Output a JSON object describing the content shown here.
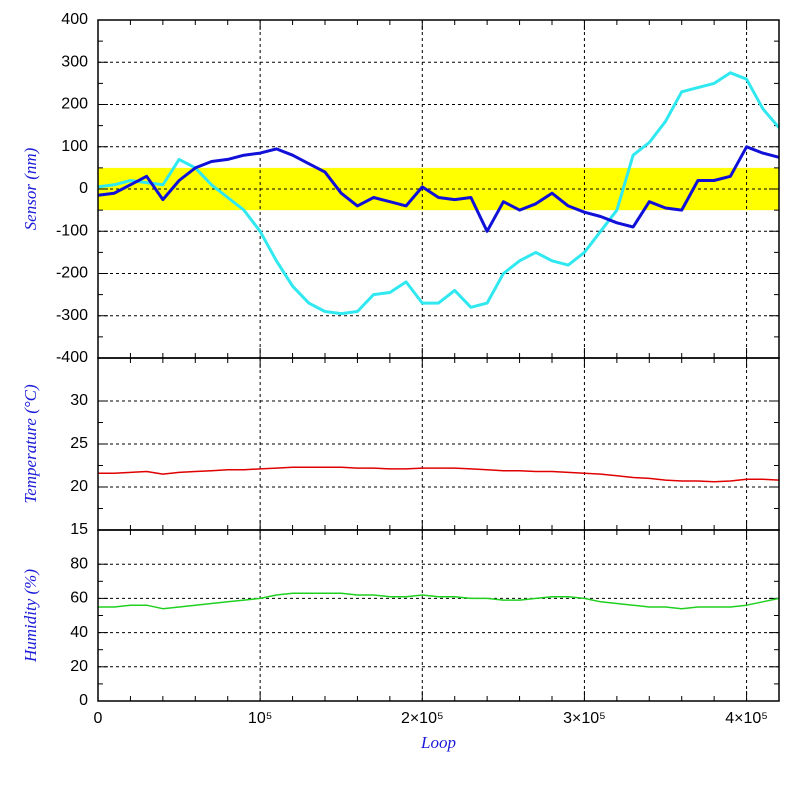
{
  "chart_data": [
    {
      "type": "line",
      "y_label": "Sensor (nm)",
      "xlim": [
        0,
        420000
      ],
      "xticks": [
        0,
        100000,
        200000,
        300000,
        400000
      ],
      "ylim": [
        -400,
        400
      ],
      "yticks": [
        -400,
        -300,
        -200,
        -100,
        0,
        100,
        200,
        300,
        400
      ],
      "grid": true,
      "band": [
        -50,
        50
      ],
      "band_color": "#ffff00",
      "x": [
        0,
        10000,
        20000,
        30000,
        40000,
        50000,
        60000,
        70000,
        80000,
        90000,
        100000,
        110000,
        120000,
        130000,
        140000,
        150000,
        160000,
        170000,
        180000,
        190000,
        200000,
        210000,
        220000,
        230000,
        240000,
        250000,
        260000,
        270000,
        280000,
        290000,
        300000,
        310000,
        320000,
        330000,
        340000,
        350000,
        360000,
        370000,
        380000,
        390000,
        400000,
        410000,
        420000
      ],
      "series": [
        {
          "color": "#30e8f0",
          "values": [
            5,
            10,
            20,
            15,
            10,
            70,
            50,
            10,
            -20,
            -50,
            -100,
            -170,
            -230,
            -270,
            -290,
            -295,
            -290,
            -250,
            -245,
            -220,
            -270,
            -270,
            -240,
            -280,
            -270,
            -200,
            -170,
            -150,
            -170,
            -180,
            -150,
            -100,
            -50,
            80,
            110,
            160,
            230,
            240,
            250,
            275,
            260,
            190,
            145
          ]
        },
        {
          "color": "#1010d8",
          "values": [
            -15,
            -10,
            10,
            30,
            -25,
            20,
            50,
            65,
            70,
            80,
            85,
            95,
            80,
            60,
            40,
            -10,
            -40,
            -20,
            -30,
            -40,
            5,
            -20,
            -25,
            -20,
            -100,
            -30,
            -50,
            -35,
            -10,
            -40,
            -55,
            -65,
            -80,
            -90,
            -30,
            -45,
            -50,
            20,
            20,
            30,
            100,
            85,
            75
          ]
        }
      ]
    },
    {
      "type": "line",
      "y_label": "Temperature (°C)",
      "xlim": [
        0,
        420000
      ],
      "xticks": [
        0,
        100000,
        200000,
        300000,
        400000
      ],
      "ylim": [
        15,
        35
      ],
      "yticks": [
        15,
        20,
        25,
        30
      ],
      "grid": true,
      "x": [
        0,
        10000,
        20000,
        30000,
        40000,
        50000,
        60000,
        70000,
        80000,
        90000,
        100000,
        110000,
        120000,
        130000,
        140000,
        150000,
        160000,
        170000,
        180000,
        190000,
        200000,
        210000,
        220000,
        230000,
        240000,
        250000,
        260000,
        270000,
        280000,
        290000,
        300000,
        310000,
        320000,
        330000,
        340000,
        350000,
        360000,
        370000,
        380000,
        390000,
        400000,
        410000,
        420000
      ],
      "series": [
        {
          "color": "#e00000",
          "values": [
            21.6,
            21.6,
            21.7,
            21.8,
            21.5,
            21.7,
            21.8,
            21.9,
            22.0,
            22.0,
            22.1,
            22.2,
            22.3,
            22.3,
            22.3,
            22.3,
            22.2,
            22.2,
            22.1,
            22.1,
            22.2,
            22.2,
            22.2,
            22.1,
            22.0,
            21.9,
            21.9,
            21.8,
            21.8,
            21.7,
            21.6,
            21.5,
            21.3,
            21.1,
            21.0,
            20.8,
            20.7,
            20.7,
            20.6,
            20.7,
            20.9,
            20.9,
            20.8
          ]
        }
      ]
    },
    {
      "type": "line",
      "y_label": "Humidity (%)",
      "x_label": "Loop",
      "xlim": [
        0,
        420000
      ],
      "xticks": [
        {
          "value": 0,
          "label": "0"
        },
        {
          "value": 100000,
          "label": "10⁵"
        },
        {
          "value": 200000,
          "label": "2×10⁵"
        },
        {
          "value": 300000,
          "label": "3×10⁵"
        },
        {
          "value": 400000,
          "label": "4×10⁵"
        }
      ],
      "ylim": [
        0,
        100
      ],
      "yticks": [
        0,
        20,
        40,
        60,
        80
      ],
      "grid": true,
      "x": [
        0,
        10000,
        20000,
        30000,
        40000,
        50000,
        60000,
        70000,
        80000,
        90000,
        100000,
        110000,
        120000,
        130000,
        140000,
        150000,
        160000,
        170000,
        180000,
        190000,
        200000,
        210000,
        220000,
        230000,
        240000,
        250000,
        260000,
        270000,
        280000,
        290000,
        300000,
        310000,
        320000,
        330000,
        340000,
        350000,
        360000,
        370000,
        380000,
        390000,
        400000,
        410000,
        420000
      ],
      "series": [
        {
          "color": "#20d020",
          "values": [
            55,
            55,
            56,
            56,
            54,
            55,
            56,
            57,
            58,
            59,
            60,
            62,
            63,
            63,
            63,
            63,
            62,
            62,
            61,
            61,
            62,
            61,
            61,
            60,
            60,
            59,
            59,
            60,
            61,
            61,
            60,
            58,
            57,
            56,
            55,
            55,
            54,
            55,
            55,
            55,
            56,
            58,
            60
          ]
        }
      ]
    }
  ]
}
